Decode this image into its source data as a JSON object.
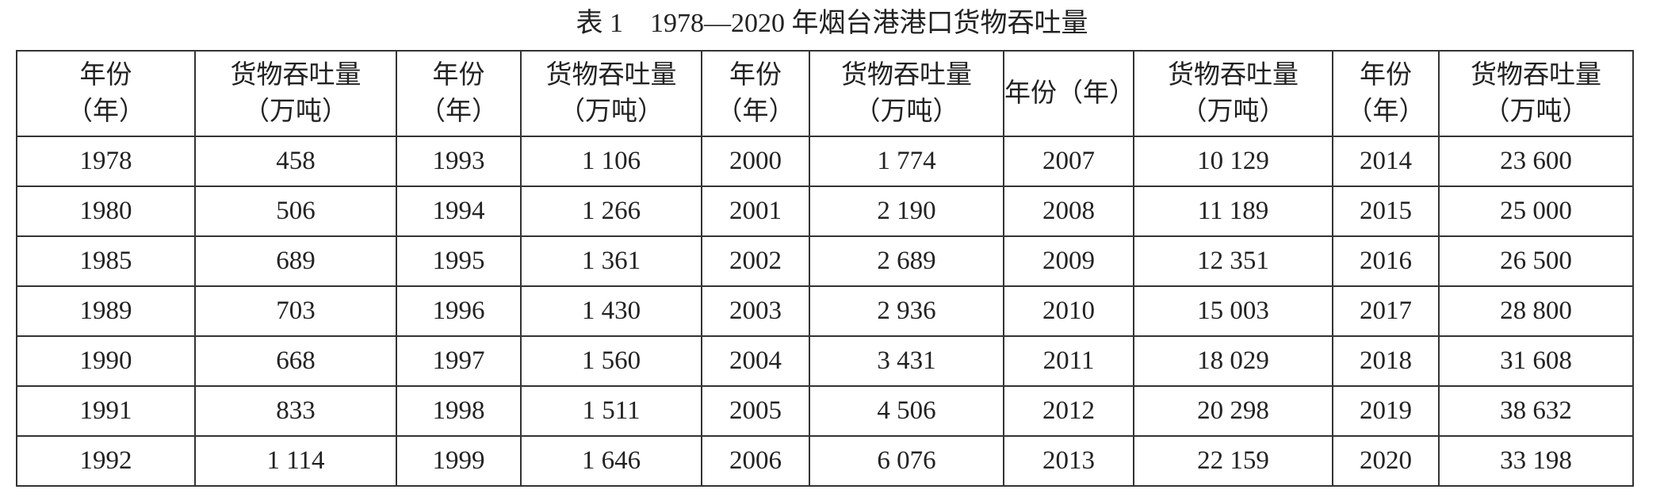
{
  "title": "表 1　1978—2020 年烟台港港口货物吞吐量",
  "table": {
    "headers": [
      [
        "年份",
        "（年）"
      ],
      [
        "货物吞吐量",
        "（万吨）"
      ],
      [
        "年份",
        "（年）"
      ],
      [
        "货物吞吐量",
        "（万吨）"
      ],
      [
        "年份",
        "（年）"
      ],
      [
        "货物吞吐量",
        "（万吨）"
      ],
      [
        "年份（年）"
      ],
      [
        "货物吞吐量",
        "（万吨）"
      ],
      [
        "年份",
        "（年）"
      ],
      [
        "货物吞吐量",
        "（万吨）"
      ]
    ],
    "rows": [
      [
        "1978",
        "458",
        "1993",
        "1 106",
        "2000",
        "1 774",
        "2007",
        "10 129",
        "2014",
        "23 600"
      ],
      [
        "1980",
        "506",
        "1994",
        "1 266",
        "2001",
        "2 190",
        "2008",
        "11 189",
        "2015",
        "25 000"
      ],
      [
        "1985",
        "689",
        "1995",
        "1 361",
        "2002",
        "2 689",
        "2009",
        "12 351",
        "2016",
        "26 500"
      ],
      [
        "1989",
        "703",
        "1996",
        "1 430",
        "2003",
        "2 936",
        "2010",
        "15 003",
        "2017",
        "28 800"
      ],
      [
        "1990",
        "668",
        "1997",
        "1 560",
        "2004",
        "3 431",
        "2011",
        "18 029",
        "2018",
        "31 608"
      ],
      [
        "1991",
        "833",
        "1998",
        "1 511",
        "2005",
        "4 506",
        "2012",
        "20 298",
        "2019",
        "38 632"
      ],
      [
        "1992",
        "1 114",
        "1999",
        "1 646",
        "2006",
        "6 076",
        "2013",
        "22 159",
        "2020",
        "33 198"
      ]
    ]
  }
}
